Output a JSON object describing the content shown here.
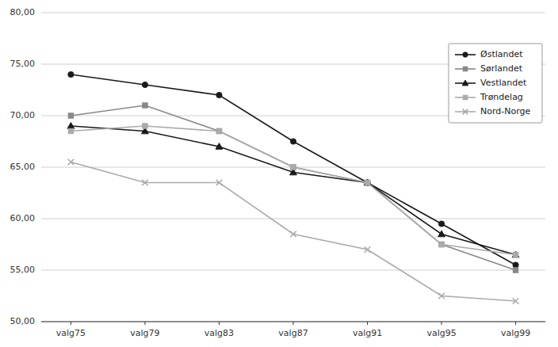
{
  "chart_data": {
    "type": "line",
    "categories": [
      "valg75",
      "valg79",
      "valg83",
      "valg87",
      "valg91",
      "valg95",
      "valg99"
    ],
    "series": [
      {
        "name": "Østlandet",
        "color": "#1a1a1a",
        "marker": "circle",
        "line_style": "solid",
        "values": [
          74.0,
          73.0,
          72.0,
          67.5,
          63.5,
          59.5,
          55.5
        ]
      },
      {
        "name": "Sørlandet",
        "color": "#888888",
        "marker": "square",
        "line_style": "solid",
        "values": [
          70.0,
          71.0,
          68.5,
          65.0,
          63.5,
          57.5,
          55.0
        ]
      },
      {
        "name": "Vestlandet",
        "color": "#1a1a1a",
        "marker": "triangle",
        "line_style": "solid",
        "values": [
          69.0,
          68.5,
          67.0,
          64.5,
          63.5,
          58.5,
          56.5
        ]
      },
      {
        "name": "Trøndelag",
        "color": "#aaaaaa",
        "marker": "square",
        "line_style": "solid",
        "values": [
          68.5,
          69.0,
          68.5,
          65.0,
          63.5,
          57.5,
          56.5
        ]
      },
      {
        "name": "Nord-Norge",
        "color": "#aaaaaa",
        "marker": "x",
        "line_style": "solid",
        "values": [
          65.5,
          63.5,
          63.5,
          58.5,
          57.0,
          52.5,
          52.0
        ]
      }
    ],
    "ylim": [
      50.0,
      80.0
    ],
    "yticks": [
      {
        "value": 50.0,
        "label": "50,00"
      },
      {
        "value": 55.0,
        "label": "55,00"
      },
      {
        "value": 60.0,
        "label": "60,00"
      },
      {
        "value": 65.0,
        "label": "65,00"
      },
      {
        "value": 70.0,
        "label": "70,00"
      },
      {
        "value": 75.0,
        "label": "75,00"
      },
      {
        "value": 80.0,
        "label": "80,00"
      }
    ],
    "grid": true,
    "legend": "upper right"
  }
}
